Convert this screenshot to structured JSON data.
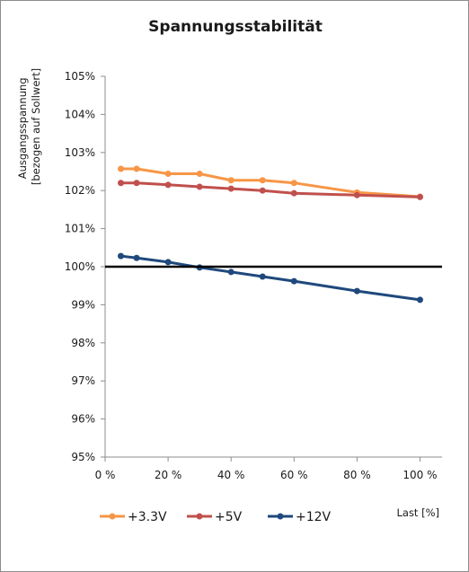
{
  "chart_data": {
    "type": "line",
    "title": "Spannungsstabilität",
    "ylabel_lines": [
      "Ausgangsspannung",
      "[bezogen auf Sollwert]"
    ],
    "xlabel": "Last [%]",
    "xlim": [
      0,
      107
    ],
    "ylim": [
      95,
      105
    ],
    "x_ticks": [
      0,
      20,
      40,
      60,
      80,
      100
    ],
    "x_tick_labels": [
      "0 %",
      "20 %",
      "40 %",
      "60 %",
      "80 %",
      "100 %"
    ],
    "y_ticks": [
      95,
      96,
      97,
      98,
      99,
      100,
      101,
      102,
      103,
      104,
      105
    ],
    "y_tick_labels": [
      "95%",
      "96%",
      "97%",
      "98%",
      "99%",
      "100%",
      "101%",
      "102%",
      "103%",
      "104%",
      "105%"
    ],
    "grid": false,
    "legend_position": "bottom-left",
    "reference_line": {
      "y": 100,
      "x": [
        0,
        107
      ],
      "color": "#000000"
    },
    "series": [
      {
        "name": "+3.3V",
        "color": "#f79646",
        "x": [
          5,
          10,
          20,
          30,
          40,
          50,
          60,
          80,
          100
        ],
        "y": [
          102.57,
          102.57,
          102.44,
          102.44,
          102.27,
          102.27,
          102.2,
          101.95,
          101.84
        ]
      },
      {
        "name": "+5V",
        "color": "#c0504d",
        "x": [
          5,
          10,
          20,
          30,
          40,
          50,
          60,
          80,
          100
        ],
        "y": [
          102.2,
          102.2,
          102.15,
          102.1,
          102.05,
          102.0,
          101.93,
          101.88,
          101.83
        ]
      },
      {
        "name": "+12V",
        "color": "#1f497d",
        "x": [
          5,
          10,
          20,
          30,
          40,
          50,
          60,
          80,
          100
        ],
        "y": [
          100.28,
          100.23,
          100.12,
          99.98,
          99.86,
          99.74,
          99.62,
          99.36,
          99.13
        ]
      }
    ]
  }
}
